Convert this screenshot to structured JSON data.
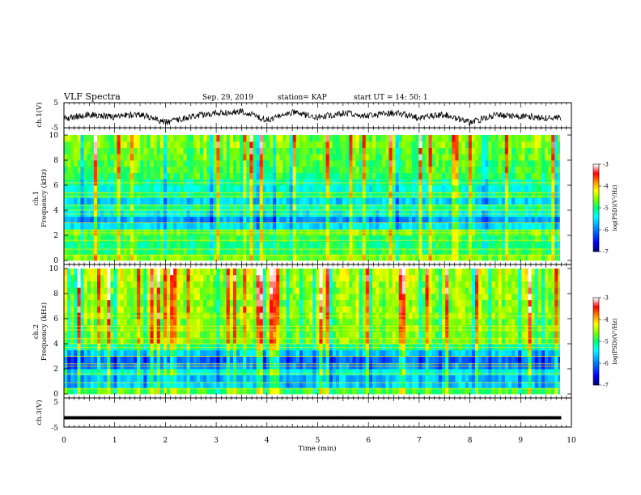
{
  "header": {
    "title": "VLF Spectra",
    "date": "Sep. 29, 2019",
    "station": "station= KAP",
    "start": "start  UT =   14: 50: 1"
  },
  "colors": {
    "axis": "#000000",
    "trace": "#000000",
    "background": "#ffffff",
    "spectrum_colormap": [
      "#000080",
      "#0000ff",
      "#00a0ff",
      "#00ffff",
      "#00ff80",
      "#80ff00",
      "#ffff00",
      "#ff8000",
      "#ff0000",
      "#ffffff"
    ]
  },
  "chart_data": [
    {
      "type": "line",
      "name": "waveform-ch1",
      "ylabel": "ch.1(V)",
      "yticks": [
        "5",
        "-5"
      ],
      "ylim": [
        -5,
        5
      ],
      "xlim": [
        0,
        10
      ],
      "x": [
        0,
        0.5,
        1.0,
        1.5,
        2.0,
        2.5,
        3.0,
        3.5,
        4.0,
        4.5,
        5.0,
        5.5,
        6.0,
        6.5,
        7.0,
        7.5,
        8.0,
        8.5,
        9.0,
        9.5,
        9.8
      ],
      "y": [
        -1.2,
        0.2,
        -0.6,
        0.5,
        -2.8,
        -0.5,
        0.8,
        1.5,
        -1.8,
        1.2,
        -0.8,
        0.9,
        -0.3,
        1.0,
        -0.9,
        0.3,
        -3.0,
        0.2,
        -0.4,
        -0.9,
        -1.0
      ]
    },
    {
      "type": "heatmap",
      "name": "spectrogram-ch1",
      "ylabel_top": "ch.1",
      "ylabel": "Frequency (kHz)",
      "yticks": [
        "0",
        "2",
        "4",
        "6",
        "8",
        "10"
      ],
      "ylim": [
        0,
        10
      ],
      "xlim": [
        0,
        10
      ],
      "data_end_min": 9.8,
      "colorbar": {
        "label": "log(PSD)(V²/Hz)",
        "ticks": [
          "-3",
          "-4",
          "-5",
          "-6",
          "-7"
        ],
        "range": [
          -7,
          -3
        ]
      },
      "rows": [
        {
          "f": [
            0,
            0.5
          ],
          "level": -4.6
        },
        {
          "f": [
            0.5,
            1.0
          ],
          "level": -4.9
        },
        {
          "f": [
            1.0,
            1.5
          ],
          "level": -5.0
        },
        {
          "f": [
            1.5,
            2.0
          ],
          "level": -4.9
        },
        {
          "f": [
            2.0,
            2.5
          ],
          "level": -4.7
        },
        {
          "f": [
            2.5,
            3.0
          ],
          "level": -5.5
        },
        {
          "f": [
            3.0,
            3.5
          ],
          "level": -5.9
        },
        {
          "f": [
            3.5,
            4.0
          ],
          "level": -5.4
        },
        {
          "f": [
            4.0,
            4.5
          ],
          "level": -5.1
        },
        {
          "f": [
            4.5,
            5.0
          ],
          "level": -5.6
        },
        {
          "f": [
            5.0,
            5.5
          ],
          "level": -5.0
        },
        {
          "f": [
            5.5,
            6.0
          ],
          "level": -5.3
        },
        {
          "f": [
            6.0,
            6.5
          ],
          "level": -5.1
        },
        {
          "f": [
            6.5,
            7.0
          ],
          "level": -4.9
        },
        {
          "f": [
            7.0,
            7.5
          ],
          "level": -4.8
        },
        {
          "f": [
            7.5,
            8.0
          ],
          "level": -4.8
        },
        {
          "f": [
            8.0,
            8.5
          ],
          "level": -4.7
        },
        {
          "f": [
            8.5,
            9.0
          ],
          "level": -4.7
        },
        {
          "f": [
            9.0,
            9.5
          ],
          "level": -4.6
        },
        {
          "f": [
            9.5,
            10.0
          ],
          "level": -4.6
        }
      ]
    },
    {
      "type": "heatmap",
      "name": "spectrogram-ch2",
      "ylabel_top": "ch.2",
      "ylabel": "Frequency (kHz)",
      "yticks": [
        "0",
        "2",
        "4",
        "6",
        "8",
        "10"
      ],
      "ylim": [
        0,
        10
      ],
      "xlim": [
        0,
        10
      ],
      "data_end_min": 9.8,
      "colorbar": {
        "label": "log(PSD)(V²/Hz)",
        "ticks": [
          "-3",
          "-4",
          "-5",
          "-6",
          "-7"
        ],
        "range": [
          -7,
          -3
        ]
      },
      "rows": [
        {
          "f": [
            0,
            0.5
          ],
          "level": -4.8
        },
        {
          "f": [
            0.5,
            1.0
          ],
          "level": -5.6
        },
        {
          "f": [
            1.0,
            1.5
          ],
          "level": -5.7
        },
        {
          "f": [
            1.5,
            2.0
          ],
          "level": -5.3
        },
        {
          "f": [
            2.0,
            2.5
          ],
          "level": -5.9
        },
        {
          "f": [
            2.5,
            3.0
          ],
          "level": -6.1
        },
        {
          "f": [
            3.0,
            3.5
          ],
          "level": -5.6
        },
        {
          "f": [
            3.5,
            4.0
          ],
          "level": -5.0
        },
        {
          "f": [
            4.0,
            4.5
          ],
          "level": -4.6
        },
        {
          "f": [
            4.5,
            5.0
          ],
          "level": -4.6
        },
        {
          "f": [
            5.0,
            5.5
          ],
          "level": -4.6
        },
        {
          "f": [
            5.5,
            6.0
          ],
          "level": -4.6
        },
        {
          "f": [
            6.0,
            6.5
          ],
          "level": -4.5
        },
        {
          "f": [
            6.5,
            7.0
          ],
          "level": -4.5
        },
        {
          "f": [
            7.0,
            7.5
          ],
          "level": -4.6
        },
        {
          "f": [
            7.5,
            8.0
          ],
          "level": -4.5
        },
        {
          "f": [
            8.0,
            8.5
          ],
          "level": -4.5
        },
        {
          "f": [
            8.5,
            9.0
          ],
          "level": -4.5
        },
        {
          "f": [
            9.0,
            9.5
          ],
          "level": -4.4
        },
        {
          "f": [
            9.5,
            10.0
          ],
          "level": -4.4
        }
      ]
    },
    {
      "type": "line",
      "name": "waveform-ch3",
      "ylabel": "ch.3(V)",
      "yticks": [
        "5",
        "-5"
      ],
      "ylim": [
        -5,
        5
      ],
      "xlim": [
        0,
        10
      ],
      "x": [
        0,
        9.8
      ],
      "y": [
        -1.8,
        -1.8
      ],
      "xlabel": "Time (min)",
      "xticks": [
        "0",
        "1",
        "2",
        "3",
        "4",
        "5",
        "6",
        "7",
        "8",
        "9",
        "10"
      ]
    }
  ]
}
